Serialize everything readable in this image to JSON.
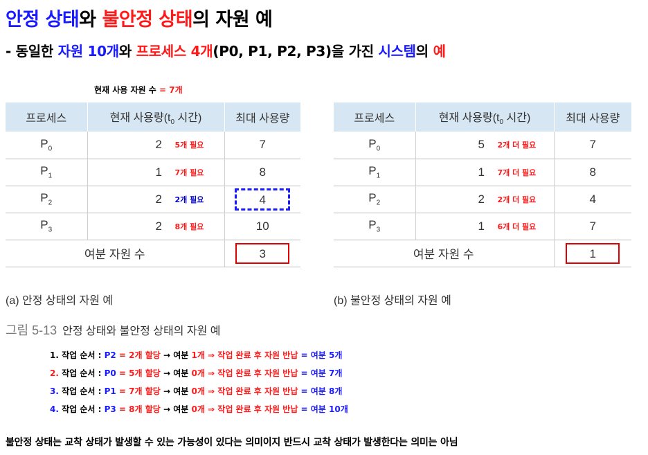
{
  "title": {
    "part1": "안정 상태",
    "part2": "와 ",
    "part3": "불안정 상태",
    "part4": "의 ",
    "part5": "자원 예"
  },
  "subtitle": {
    "p1": "- 동일한 ",
    "p2": "자원 10개",
    "p3": "와 ",
    "p4": "프로세스 4개",
    "p5": "(P0, P1, P2, P3)을 가진 ",
    "p6": "시스템",
    "p7": "의 ",
    "p8": "예"
  },
  "current_note": {
    "label": "현재 사용 자원 수 ",
    "value": "= 7개"
  },
  "headers": {
    "process": "프로세스",
    "current_prefix": "현재 사용량(t",
    "current_sub": "0",
    "current_suffix": " 시간)",
    "max": "최대 사용량"
  },
  "table_a": {
    "rows": [
      {
        "p": "P",
        "sub": "0",
        "current": "2",
        "need": "5개 필요",
        "max": "7"
      },
      {
        "p": "P",
        "sub": "1",
        "current": "1",
        "need": "7개 필요",
        "max": "8"
      },
      {
        "p": "P",
        "sub": "2",
        "current": "2",
        "need": "2개 필요",
        "max": "4"
      },
      {
        "p": "P",
        "sub": "3",
        "current": "2",
        "need": "8개 필요",
        "max": "10"
      }
    ],
    "spare_label": "여분 자원 수",
    "spare_value": "3",
    "caption": "(a) 안정 상태의 자원 예"
  },
  "table_b": {
    "rows": [
      {
        "p": "P",
        "sub": "0",
        "current": "5",
        "need": "2개 더 필요",
        "max": "7"
      },
      {
        "p": "P",
        "sub": "1",
        "current": "1",
        "need": "7개 더 필요",
        "max": "8"
      },
      {
        "p": "P",
        "sub": "2",
        "current": "2",
        "need": "2개 더 필요",
        "max": "4"
      },
      {
        "p": "P",
        "sub": "3",
        "current": "1",
        "need": "6개 더 필요",
        "max": "7"
      }
    ],
    "spare_label": "여분 자원 수",
    "spare_value": "1",
    "caption": "(b) 불안정 상태의 자원 예"
  },
  "figure_caption": {
    "number": "그림 5-13",
    "text": "안정 상태와 불안정 상태의 자원 예"
  },
  "steps": [
    {
      "num": "1. ",
      "label": "작업 순서 : ",
      "proc": "P2",
      "alloc": " = 2개 할당",
      "arrow": " → 여분 ",
      "rest": "1개",
      "then": "  ⇒ 작업 완료 후 자원 반납",
      "after": " = 여분 5개"
    },
    {
      "num": "2. ",
      "label": "작업 순서 : ",
      "proc": "P0",
      "alloc": " = 5개 할당",
      "arrow": " → 여분 ",
      "rest": "0개",
      "then": "  ⇒ 작업 완료 후 자원 반납",
      "after": " = 여분 7개"
    },
    {
      "num": "3. ",
      "label": "작업 순서 : ",
      "proc": "P1",
      "alloc": " = 7개 할당",
      "arrow": " → 여분 ",
      "rest": "0개",
      "then": "  ⇒ 작업 완료 후 자원 반납",
      "after": " = 여분 8개"
    },
    {
      "num": "4. ",
      "label": "작업 순서 : ",
      "proc": "P3",
      "alloc": " = 8개 할당",
      "arrow": " → 여분 ",
      "rest": "0개",
      "then": "  ⇒ 작업 완료 후 자원 반납",
      "after": " = 여분 10개"
    }
  ],
  "footer": "불안정 상태는 교착 상태가 발생할 수 있는 가능성이 있다는 의미이지 반드시 교착 상태가 발생한다는 의미는 아님",
  "colors": {
    "blue": "#1a1aff",
    "red": "#ff1a1a",
    "header_bg": "#d6e6f2",
    "box_red": "#e00000"
  }
}
